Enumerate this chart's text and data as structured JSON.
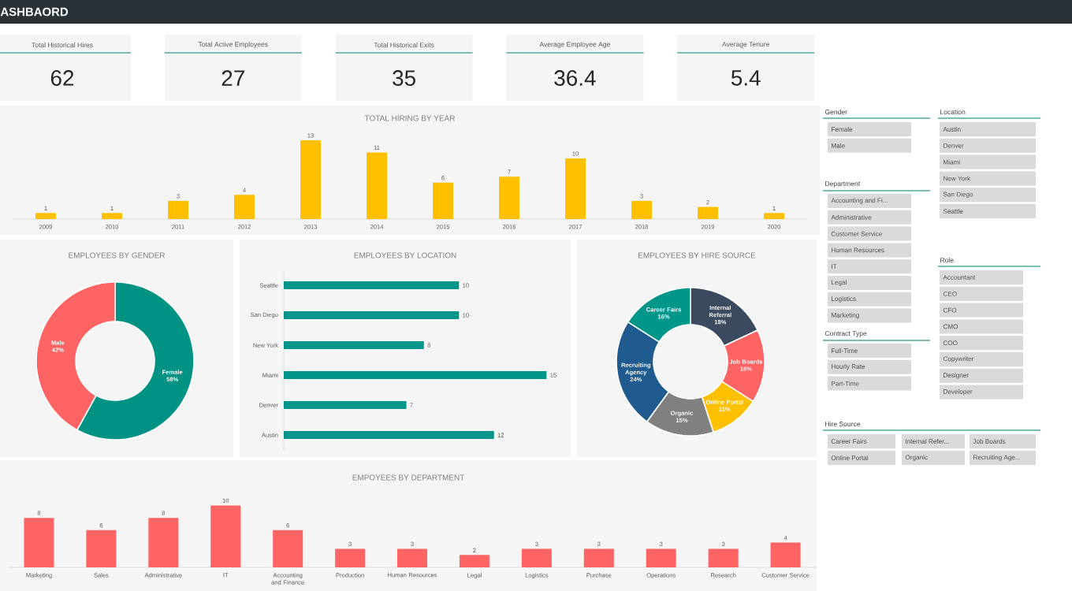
{
  "chart_data": [
    {
      "type": "other",
      "title": "ASHBAORD",
      "categories": [
        "Total Historical Hires",
        "Total Active Employees",
        "Total Historical Exits",
        "Average Employee Age",
        "Average Tenure"
      ],
      "annotations": [
        "62",
        "27",
        "35",
        "36.4",
        "5.4"
      ]
    },
    {
      "type": "bar",
      "title": "TOTAL HIRING BY YEAR",
      "categories": [
        "2009",
        "2010",
        "2011",
        "2012",
        "2013",
        "2014",
        "2015",
        "2016",
        "2017",
        "2018",
        "2019",
        "2020"
      ],
      "values": [
        1,
        1,
        3,
        4,
        13,
        11,
        6,
        7,
        10,
        3,
        2,
        1
      ],
      "color": "#ffc000",
      "data_labels": true
    },
    {
      "type": "donut",
      "title": "EMPLOYEES BY GENDER",
      "categories": [
        "Female",
        "Male"
      ],
      "values": [
        58,
        42
      ],
      "value_labels": [
        "58%",
        "42%"
      ],
      "colors": [
        "#009383",
        "#ff6464"
      ]
    },
    {
      "type": "bar",
      "orientation": "horizontal",
      "title": "EMPLOYEES BY LOCATION",
      "categories": [
        "Seattle",
        "San Diego",
        "New York",
        "Miami",
        "Denver",
        "Austin"
      ],
      "values": [
        10,
        10,
        8,
        15,
        7,
        12
      ],
      "color": "#00958a",
      "data_labels": true
    },
    {
      "type": "donut",
      "title": "EMPLOYEES BY HIRE SOURCE",
      "categories": [
        "Internal Referral",
        "Job Boards",
        "Online Portal",
        "Organic",
        "Recruiting Agency",
        "Career Fairs"
      ],
      "values": [
        18,
        16,
        11,
        15,
        24,
        16
      ],
      "value_labels": [
        "18%",
        "16%",
        "11%",
        "15%",
        "24%",
        "16%"
      ],
      "colors": [
        "#3b4a5e",
        "#ff6464",
        "#ffc000",
        "#808080",
        "#1f5b8e",
        "#00968a"
      ]
    },
    {
      "type": "bar",
      "title": "EMPOYEES BY DEPARTMENT",
      "categories": [
        "Marketing",
        "Sales",
        "Administrative",
        "IT",
        "Accounting and Finance",
        "Production",
        "Human Resources",
        "Legal",
        "Logistics",
        "Purchase",
        "Operations",
        "Research",
        "Customer Service"
      ],
      "values": [
        8,
        6,
        8,
        10,
        6,
        3,
        3,
        2,
        3,
        3,
        3,
        3,
        4
      ],
      "color": "#ff6464",
      "data_labels": true
    },
    {
      "type": "other",
      "title": "Gender",
      "categories": [
        "Female",
        "Male"
      ]
    },
    {
      "type": "other",
      "title": "Location",
      "categories": [
        "Austin",
        "Denver",
        "Miami",
        "New York",
        "San Diego",
        "Seattle"
      ]
    },
    {
      "type": "other",
      "title": "Department",
      "categories": [
        "Accounting and Fi...",
        "Administrative",
        "Customer Service",
        "Human Resources",
        "IT",
        "Legal",
        "Logistics",
        "Marketing"
      ]
    },
    {
      "type": "other",
      "title": "Contract Type",
      "categories": [
        "Full-Time",
        "Hourly Rate",
        "Part-Time"
      ]
    },
    {
      "type": "other",
      "title": "Role",
      "categories": [
        "Accountant",
        "CEO",
        "CFO",
        "CMO",
        "COO",
        "Copywriter",
        "Designer",
        "Developer"
      ]
    },
    {
      "type": "other",
      "title": "Hire Source",
      "categories": [
        "Career Fairs",
        "Internal Refer...",
        "Job Boards",
        "Online Portal",
        "Organic",
        "Recruiting Age..."
      ]
    }
  ]
}
